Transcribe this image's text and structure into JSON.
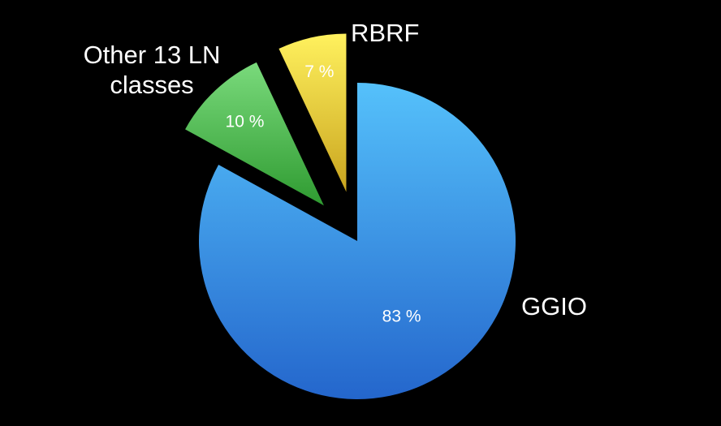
{
  "chart_data": {
    "type": "pie",
    "title": "",
    "slices": [
      {
        "name": "GGIO",
        "label_lines": [
          "GGIO"
        ],
        "value": 83,
        "value_label": "83 %",
        "color": "#3d9be8",
        "color_light": "#55c1fb",
        "color_dark": "#2466cc",
        "exploded": false
      },
      {
        "name": "Other 13 LN classes",
        "label_lines": [
          "Other 13 LN",
          "classes"
        ],
        "value": 10,
        "value_label": "10 %",
        "color": "#4cbf4f",
        "color_light": "#7ada7c",
        "color_dark": "#2f9b31",
        "exploded": true
      },
      {
        "name": "RBRF",
        "label_lines": [
          "RBRF"
        ],
        "value": 7,
        "value_label": "7 %",
        "color": "#e2d03a",
        "color_light": "#fff15e",
        "color_dark": "#c9a41e",
        "exploded": true
      }
    ],
    "start_angle": "12 o'clock",
    "direction": "clockwise",
    "legend": "none",
    "background": "#000000"
  }
}
